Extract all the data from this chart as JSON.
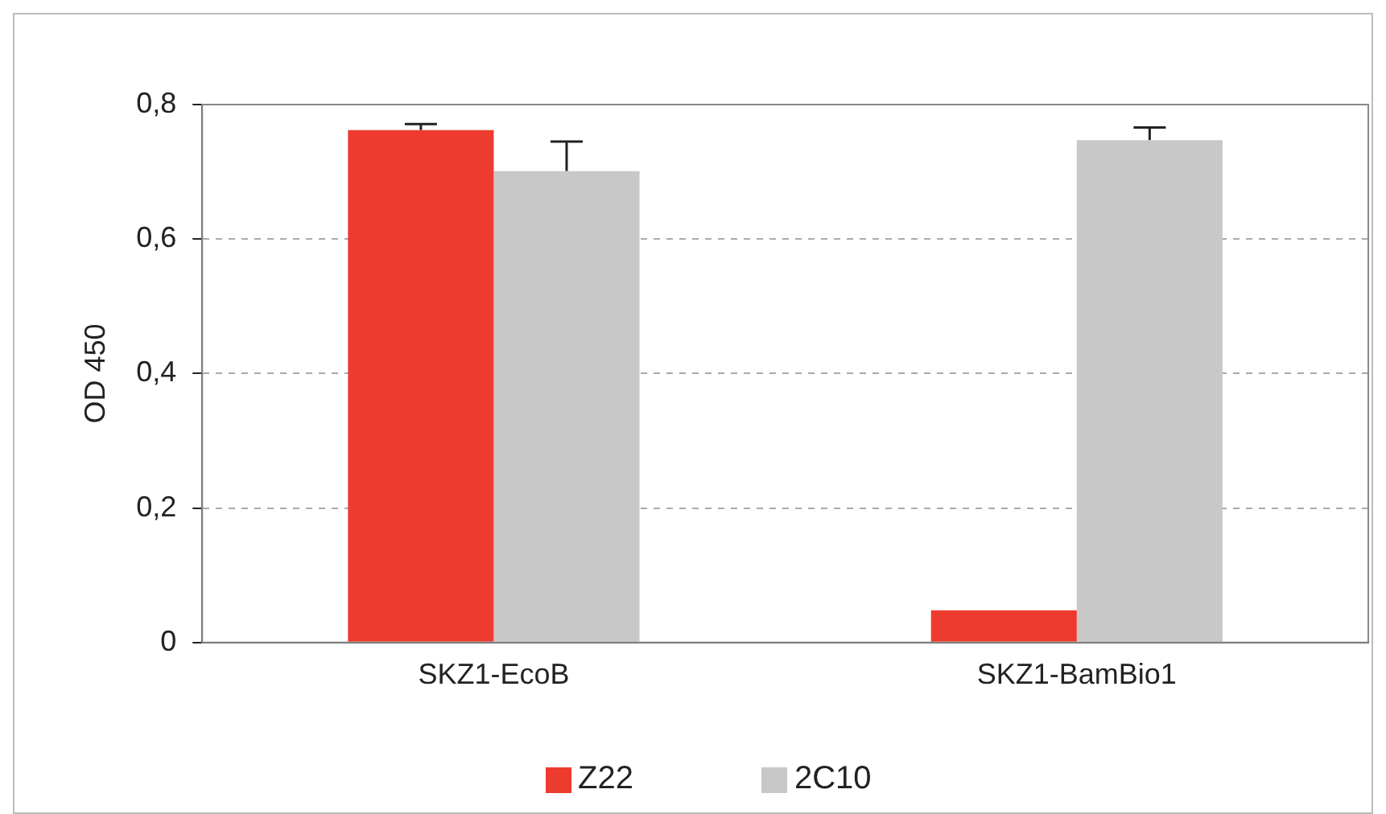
{
  "chart_data": {
    "type": "bar",
    "ylabel": "OD 450",
    "categories": [
      "SKZ1-EcoB",
      "SKZ1-BamBio1"
    ],
    "series": [
      {
        "name": "Z22",
        "color": "#ee3b2f",
        "values": [
          0.762,
          0.048
        ],
        "errors": [
          [
            0.762,
            0.771
          ],
          null
        ]
      },
      {
        "name": "2C10",
        "color": "#c8c8c8",
        "values": [
          0.701,
          0.747
        ],
        "errors": [
          [
            0.701,
            0.745
          ],
          [
            0.747,
            0.766
          ]
        ]
      }
    ],
    "ylim": [
      0,
      0.8
    ],
    "yticks": [
      0,
      {
        "value": 0.2,
        "label": "0,2"
      },
      {
        "value": 0.4,
        "label": "0,4"
      },
      {
        "value": 0.6,
        "label": "0,6"
      },
      {
        "value": 0.8,
        "label": "0,8"
      }
    ],
    "grid": "y",
    "legend": "bottom"
  }
}
